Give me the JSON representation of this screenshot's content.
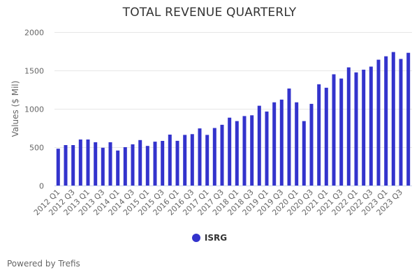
{
  "title": "TOTAL REVENUE QUARTERLY",
  "footer": "Powered by Trefis",
  "legend": {
    "items": [
      {
        "label": "ISRG",
        "color": "#3333cc"
      }
    ]
  },
  "chart_data": {
    "type": "bar",
    "title": "TOTAL REVENUE QUARTERLY",
    "xlabel": "",
    "ylabel": "Values ($ Mil)",
    "ylim": [
      0,
      2000
    ],
    "yticks": [
      0,
      500,
      1000,
      1500,
      2000
    ],
    "grid": true,
    "legend_position": "bottom",
    "categories": [
      "2012 Q1",
      "2012 Q2",
      "2012 Q3",
      "2012 Q4",
      "2013 Q1",
      "2013 Q2",
      "2013 Q3",
      "2013 Q4",
      "2014 Q1",
      "2014 Q2",
      "2014 Q3",
      "2014 Q4",
      "2015 Q1",
      "2015 Q2",
      "2015 Q3",
      "2015 Q4",
      "2016 Q1",
      "2016 Q2",
      "2016 Q3",
      "2016 Q4",
      "2017 Q1",
      "2017 Q2",
      "2017 Q3",
      "2017 Q4",
      "2018 Q1",
      "2018 Q2",
      "2018 Q3",
      "2018 Q4",
      "2019 Q1",
      "2019 Q2",
      "2019 Q3",
      "2019 Q4",
      "2020 Q1",
      "2020 Q2",
      "2020 Q3",
      "2020 Q4",
      "2021 Q1",
      "2021 Q2",
      "2021 Q3",
      "2021 Q4",
      "2022 Q1",
      "2022 Q2",
      "2022 Q3",
      "2022 Q4",
      "2023 Q1",
      "2023 Q2",
      "2023 Q3",
      "2023 Q4"
    ],
    "tick_labels_shown": [
      "2012 Q1",
      "2012 Q3",
      "2013 Q1",
      "2013 Q3",
      "2014 Q1",
      "2014 Q3",
      "2015 Q1",
      "2015 Q3",
      "2016 Q1",
      "2016 Q3",
      "2017 Q1",
      "2017 Q3",
      "2018 Q1",
      "2018 Q3",
      "2019 Q1",
      "2019 Q3",
      "2020 Q1",
      "2020 Q3",
      "2021 Q1",
      "2021 Q3",
      "2022 Q1",
      "2022 Q3",
      "2023 Q1",
      "2023 Q3"
    ],
    "series": [
      {
        "name": "ISRG",
        "color": "#3333cc",
        "values": [
          480,
          527,
          527,
          600,
          600,
          565,
          493,
          565,
          456,
          500,
          537,
          593,
          516,
          572,
          582,
          664,
          583,
          660,
          670,
          745,
          660,
          750,
          792,
          885,
          840,
          905,
          915,
          1040,
          965,
          1085,
          1120,
          1265,
          1085,
          840,
          1065,
          1320,
          1275,
          1450,
          1395,
          1540,
          1475,
          1510,
          1550,
          1640,
          1685,
          1740,
          1650,
          1730
        ]
      }
    ]
  }
}
